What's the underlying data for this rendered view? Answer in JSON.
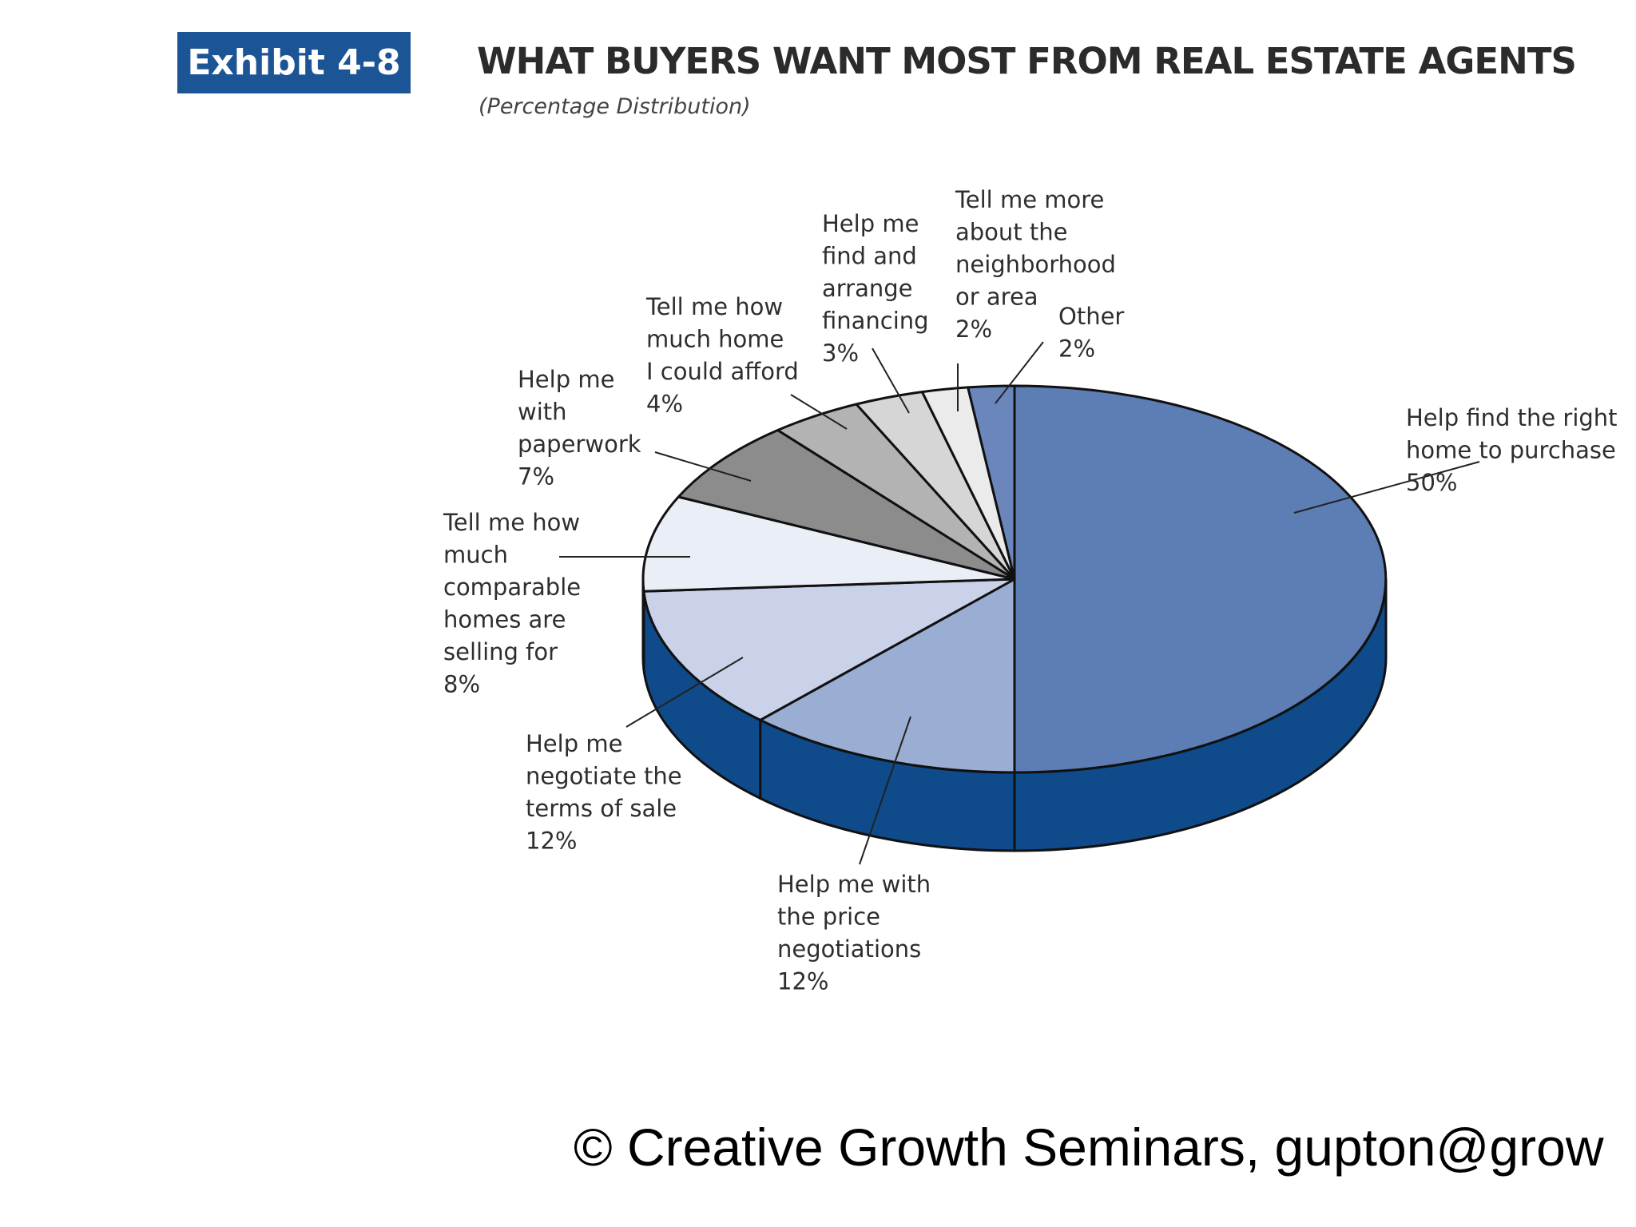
{
  "header": {
    "exhibit": "Exhibit 4-8",
    "title": "WHAT BUYERS WANT MOST FROM REAL ESTATE AGENTS",
    "subtitle": "(Percentage Distribution)"
  },
  "footer": {
    "copyright": "© Creative Growth Seminars, gupton@grow"
  },
  "chart_data": {
    "type": "pie",
    "title": "WHAT BUYERS WANT MOST FROM REAL ESTATE AGENTS",
    "subtitle": "(Percentage Distribution)",
    "unit": "%",
    "slices": [
      {
        "label": "Help find the right home to purchase",
        "lines": [
          "Help find the right",
          "home to purchase",
          "50%"
        ],
        "value": 50,
        "color": "#5d7db5"
      },
      {
        "label": "Help me with the price negotiations",
        "lines": [
          "Help me with",
          "the price",
          "negotiations",
          "12%"
        ],
        "value": 12,
        "color": "#9aadd2"
      },
      {
        "label": "Help me negotiate the terms of sale",
        "lines": [
          "Help me",
          "negotiate the",
          "terms of sale",
          "12%"
        ],
        "value": 12,
        "color": "#c9d2e8"
      },
      {
        "label": "Tell me how much comparable homes are selling for",
        "lines": [
          "Tell me how",
          "much",
          "comparable",
          "homes are",
          "selling for",
          "8%"
        ],
        "value": 8,
        "color": "#eaeef6"
      },
      {
        "label": "Help me with paperwork",
        "lines": [
          "Help me",
          "with",
          "paperwork",
          "7%"
        ],
        "value": 7,
        "color": "#8c8c8c"
      },
      {
        "label": "Tell me how much home I could afford",
        "lines": [
          "Tell me how",
          "much home",
          "I could afford",
          "4%"
        ],
        "value": 4,
        "color": "#b3b3b3"
      },
      {
        "label": "Help me find and arrange financing",
        "lines": [
          "Help me",
          "find and",
          "arrange",
          "financing",
          "3%"
        ],
        "value": 3,
        "color": "#d6d6d6"
      },
      {
        "label": "Tell me more about the neighborhood or area",
        "lines": [
          "Tell me more",
          "about the",
          "neighborhood",
          "or area",
          "2%"
        ],
        "value": 2,
        "color": "#ebebeb"
      },
      {
        "label": "Other",
        "lines": [
          "Other",
          "2%"
        ],
        "value": 2,
        "color": "#6a86bb"
      }
    ],
    "side_color": "#0f4a8a",
    "three_d": true
  }
}
